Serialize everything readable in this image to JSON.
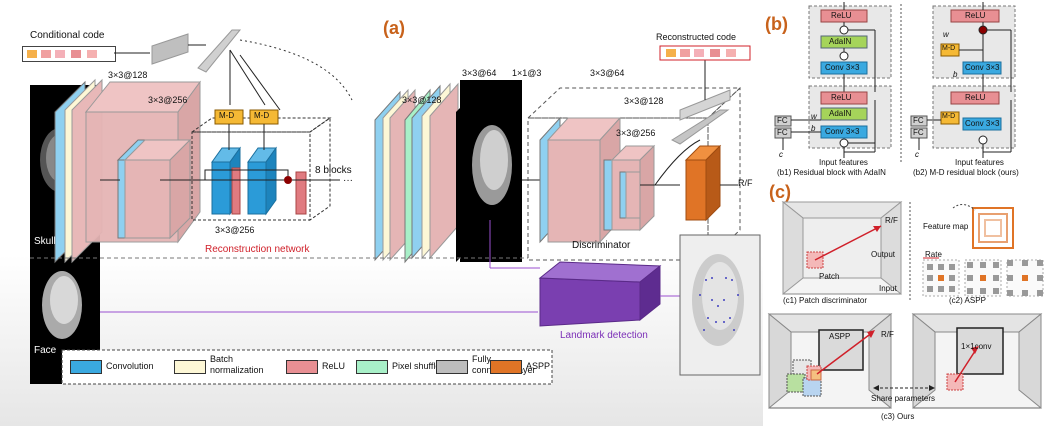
{
  "panels": {
    "a": "(a)",
    "b": "(b)",
    "c": "(c)"
  },
  "a": {
    "conditional_code": "Conditional code",
    "k1": "3×3@128",
    "k2": "3×3@256",
    "k3": "3×3@256",
    "md1": "M-D",
    "md2": "M-D",
    "blocks": "8 blocks",
    "dots": "···",
    "skull": "Skull",
    "face": "Face",
    "reconstruction_network": "Reconstruction network",
    "k4": "3×3@128",
    "k5": "3×3@64",
    "k6": "1×1@3",
    "reconstructed_code": "Reconstructed code",
    "d1": "3×3@64",
    "d2": "3×3@128",
    "d3": "3×3@256",
    "rf": "R/F",
    "discriminator": "Discriminator",
    "landmark_detection": "Landmark detection"
  },
  "legend": [
    {
      "label": "Convolution",
      "color": "#3aa9e0"
    },
    {
      "label": "Batch normalization",
      "line1": "Batch",
      "line2": "normalization",
      "color": "#fdf7d6"
    },
    {
      "label": "ReLU",
      "color": "#e88f93"
    },
    {
      "label": "Pixel shuffle",
      "color": "#a8f0c8"
    },
    {
      "label": "Fully connected layer",
      "line1": "Fully",
      "line2": "connected layer",
      "color": "#bdbdbd"
    },
    {
      "label": "ASPP",
      "color": "#e07426"
    }
  ],
  "b": {
    "b1": {
      "relu": "ReLU",
      "adain": "AdaIN",
      "conv": "Conv 3×3",
      "relu2": "ReLU",
      "adain2": "AdaIN",
      "conv2": "Conv 3×3",
      "w": "w",
      "b": "b",
      "c": "c",
      "fc": "FC",
      "input": "Input features",
      "caption": "(b1) Residual block with AdaIN"
    },
    "b2": {
      "relu": "ReLU",
      "md": "M-D",
      "conv": "Conv 3×3",
      "relu2": "ReLU",
      "md2": "M-D",
      "conv2": "Conv 3×3",
      "w": "w",
      "b": "b",
      "c": "c",
      "fc": "FC",
      "input": "Input features",
      "caption": "(b2) M-D residual block (ours)"
    }
  },
  "c": {
    "rf": "R/F",
    "patch": "Patch",
    "output": "Output",
    "input": "Input",
    "c1_caption": "(c1) Patch discriminator",
    "feature_map": "Feature map",
    "rate": "Rate",
    "c2_caption": "(c2) ASPP",
    "aspp": "ASPP",
    "rf2": "R/F",
    "conv1x1": "1×1conv",
    "share": "Share parameters",
    "c3_caption": "(c3) Ours"
  }
}
